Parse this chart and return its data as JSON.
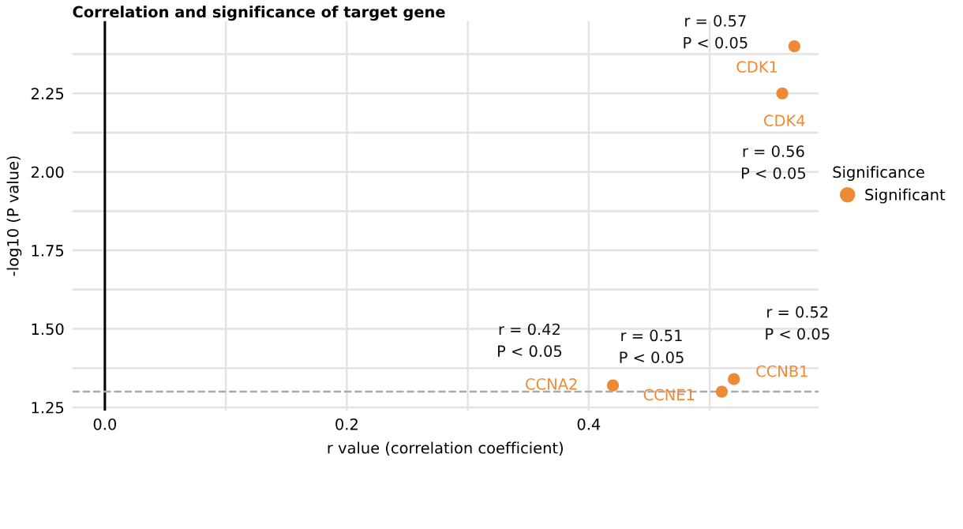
{
  "chart_data": {
    "type": "scatter",
    "title": "Correlation and significance of target gene",
    "xlabel": "r value (correlation coefficient)",
    "ylabel": "-log10 (P value)",
    "legend_title": "Significance",
    "x": [
      0.57,
      0.56,
      0.42,
      0.51,
      0.52
    ],
    "series": [
      {
        "name": "Significant",
        "color": "#ee8a35",
        "values": [
          2.4,
          2.25,
          1.32,
          1.3,
          1.34
        ]
      }
    ],
    "xlim": [
      -0.027,
      0.59
    ],
    "xticks": [
      {
        "value": 0,
        "label": "0.0"
      },
      0.2,
      0.4
    ],
    "ylim": [
      1.24,
      2.48
    ],
    "yticks": [
      1.25,
      {
        "value": 1.5,
        "label": "1.50"
      },
      {
        "value": 1.75,
        "label": "1.75"
      },
      {
        "value": 2,
        "label": "2.00"
      },
      2.25
    ],
    "grid": true,
    "legend": "right",
    "marker": "circle",
    "ref_lines": [
      {
        "axis": "x",
        "value": 0,
        "label": null,
        "color": "#000000",
        "line_style": "solid"
      },
      {
        "axis": "y",
        "value": 1.3,
        "label": null,
        "color": "#aaaaaa",
        "line_style": "dashed"
      }
    ],
    "annotations": [
      {
        "text": "CDK1",
        "x": 0.57,
        "y": 2.4
      },
      {
        "text": "CDK4",
        "x": 0.56,
        "y": 2.25
      },
      {
        "text": "CCNA2",
        "x": 0.42,
        "y": 1.32
      },
      {
        "text": "CCNE1",
        "x": 0.51,
        "y": 1.3
      },
      {
        "text": "CCNB1",
        "x": 0.52,
        "y": 1.34
      },
      "r = 0.57\nP < 0.05",
      "r = 0.56\nP < 0.05",
      "r = 0.42\nP < 0.05",
      "r = 0.51\nP < 0.05",
      "r = 0.52\nP < 0.05"
    ]
  }
}
